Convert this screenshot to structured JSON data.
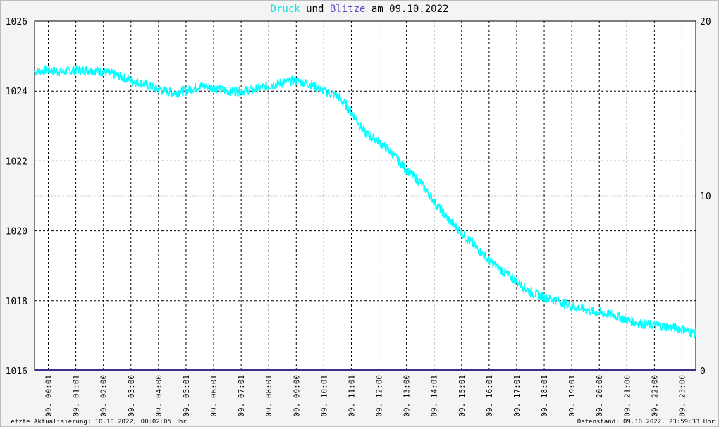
{
  "title": {
    "part1": "Druck",
    "part2": " und ",
    "part3": "Blitze",
    "part4": " am 09.10.2022"
  },
  "footer": {
    "left": "Letzte Aktualisierung: 10.10.2022, 00:02:05 Uhr",
    "right": "Datenstand: 09.10.2022, 23:59:33 Uhr"
  },
  "colors": {
    "druck": "#00ffff",
    "blitze": "#3a2f8f",
    "grid": "#000000",
    "minor_grid": "#cccccc",
    "background": "#ffffff"
  },
  "chart_data": {
    "type": "line",
    "y_left": {
      "ticks": [
        1016,
        1018,
        1020,
        1022,
        1024,
        1026
      ],
      "ylim": [
        1016,
        1026
      ],
      "minor_ticks": [
        1021
      ]
    },
    "y_right": {
      "ticks": [
        0,
        10,
        20
      ],
      "ylim": [
        0,
        20
      ]
    },
    "x_ticks": [
      "09. 00:01",
      "09. 01:01",
      "09. 02:00",
      "09. 03:00",
      "09. 04:00",
      "09. 05:01",
      "09. 06:01",
      "09. 07:01",
      "09. 08:01",
      "09. 09:00",
      "09. 10:01",
      "09. 11:01",
      "09. 12:00",
      "09. 13:00",
      "09. 14:01",
      "09. 15:01",
      "09. 16:01",
      "09. 17:01",
      "09. 18:01",
      "09. 19:01",
      "09. 20:00",
      "09. 21:00",
      "09. 22:00",
      "09. 23:00"
    ],
    "xlim_hours": [
      0,
      24
    ],
    "grid": true,
    "series": [
      {
        "name": "Druck",
        "axis": "left",
        "x_hours": [
          0,
          0.5,
          1,
          1.5,
          2,
          2.5,
          3,
          3.5,
          4,
          4.5,
          5,
          5.5,
          6,
          6.5,
          7,
          7.5,
          8,
          8.5,
          9,
          9.5,
          10,
          10.5,
          11,
          11.5,
          12,
          12.5,
          13,
          13.5,
          14,
          14.5,
          15,
          15.5,
          16,
          16.5,
          17,
          17.5,
          18,
          18.5,
          19,
          19.5,
          20,
          20.5,
          21,
          21.5,
          22,
          22.5,
          23,
          23.5,
          24
        ],
        "values": [
          1024.55,
          1024.6,
          1024.55,
          1024.6,
          1024.6,
          1024.55,
          1024.45,
          1024.3,
          1024.2,
          1024.05,
          1023.95,
          1024.0,
          1024.15,
          1024.1,
          1024.0,
          1024.0,
          1024.05,
          1024.15,
          1024.25,
          1024.3,
          1024.2,
          1024.0,
          1023.85,
          1023.4,
          1022.8,
          1022.55,
          1022.2,
          1021.75,
          1021.4,
          1020.85,
          1020.35,
          1019.95,
          1019.55,
          1019.15,
          1018.85,
          1018.55,
          1018.25,
          1018.1,
          1018.0,
          1017.85,
          1017.75,
          1017.65,
          1017.6,
          1017.45,
          1017.35,
          1017.3,
          1017.25,
          1017.2,
          1017.05
        ]
      },
      {
        "name": "Blitze",
        "axis": "right",
        "x_hours": [
          0,
          24
        ],
        "values": [
          0,
          0
        ]
      }
    ]
  }
}
